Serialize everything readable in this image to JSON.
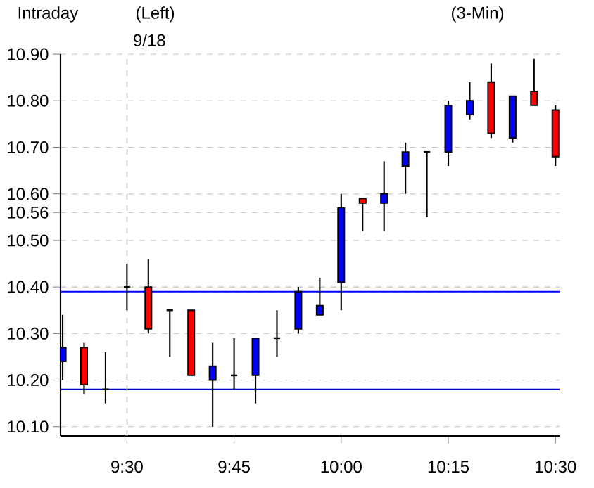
{
  "chart_data": {
    "type": "candlestick",
    "title": "Intraday",
    "annotations": [
      "(Left)",
      "(3-Min)",
      "9/18"
    ],
    "x": [
      9.35,
      9.4,
      9.45,
      9.5,
      9.55,
      9.6,
      9.65,
      9.7,
      9.75,
      9.8,
      9.85,
      9.9,
      9.95,
      10.0,
      10.05,
      10.1,
      10.15,
      10.2,
      10.25,
      10.3,
      10.35,
      10.4,
      10.45,
      10.5
    ],
    "ohlc": [
      [
        10.24,
        10.34,
        10.2,
        10.27
      ],
      [
        10.27,
        10.28,
        10.17,
        10.19
      ],
      [
        10.18,
        10.26,
        10.15,
        10.18
      ],
      [
        10.4,
        10.45,
        10.35,
        10.4
      ],
      [
        10.4,
        10.46,
        10.3,
        10.31
      ],
      [
        10.35,
        10.35,
        10.25,
        10.35
      ],
      [
        10.35,
        10.35,
        10.21,
        10.21
      ],
      [
        10.2,
        10.28,
        10.1,
        10.23
      ],
      [
        10.21,
        10.29,
        10.18,
        10.21
      ],
      [
        10.21,
        10.29,
        10.15,
        10.29
      ],
      [
        10.29,
        10.35,
        10.25,
        10.29
      ],
      [
        10.31,
        10.4,
        10.3,
        10.39
      ],
      [
        10.34,
        10.42,
        10.34,
        10.36
      ],
      [
        10.41,
        10.6,
        10.35,
        10.57
      ],
      [
        10.59,
        10.59,
        10.52,
        10.58
      ],
      [
        10.58,
        10.67,
        10.52,
        10.6
      ],
      [
        10.66,
        10.71,
        10.6,
        10.69
      ],
      [
        10.69,
        10.69,
        10.55,
        10.69
      ],
      [
        10.69,
        10.8,
        10.66,
        10.79
      ],
      [
        10.77,
        10.84,
        10.76,
        10.8
      ],
      [
        10.84,
        10.88,
        10.72,
        10.73
      ],
      [
        10.72,
        10.81,
        10.71,
        10.81
      ],
      [
        10.82,
        10.89,
        10.79,
        10.79
      ],
      [
        10.78,
        10.79,
        10.66,
        10.68
      ]
    ],
    "colors": [
      "#0000ff",
      "#ff0000",
      "#000000",
      "#000000",
      "#ff0000",
      "#000000",
      "#ff0000",
      "#0000ff",
      "#000000",
      "#0000ff",
      "#000000",
      "#0000ff",
      "#0000ff",
      "#0000ff",
      "#ff0000",
      "#0000ff",
      "#0000ff",
      "#000000",
      "#0000ff",
      "#0000ff",
      "#ff0000",
      "#0000ff",
      "#ff0000",
      "#ff0000"
    ],
    "xlim": [
      9.345,
      10.51
    ],
    "xticks": [
      {
        "value": 9.5,
        "label": "9:30"
      },
      {
        "value": 9.75,
        "label": "9:45"
      },
      {
        "value": 10.0,
        "label": "10:00"
      },
      {
        "value": 10.25,
        "label": "10:15"
      },
      {
        "value": 10.5,
        "label": "10:30"
      }
    ],
    "ylim": [
      10.08,
      10.9
    ],
    "yticks": [
      {
        "value": 10.1,
        "label": "10.10"
      },
      {
        "value": 10.2,
        "label": "10.20"
      },
      {
        "value": 10.3,
        "label": "10.30"
      },
      {
        "value": 10.4,
        "label": "10.40"
      },
      {
        "value": 10.5,
        "label": "10.50"
      },
      {
        "value": 10.56,
        "label": "10.56"
      },
      {
        "value": 10.6,
        "label": "10.60"
      },
      {
        "value": 10.7,
        "label": "10.70"
      },
      {
        "value": 10.8,
        "label": "10.80"
      },
      {
        "value": 10.9,
        "label": "10.90"
      }
    ],
    "grid": "y",
    "ref_lines": [
      {
        "axis": "y",
        "value": 10.39,
        "color": "#0000ff",
        "line_style": "solid"
      },
      {
        "axis": "y",
        "value": 10.18,
        "color": "#0000cc",
        "line_style": "solid"
      },
      {
        "axis": "x",
        "value": 9.5,
        "color": "#c0c0c0",
        "line_style": "dashed"
      }
    ]
  }
}
